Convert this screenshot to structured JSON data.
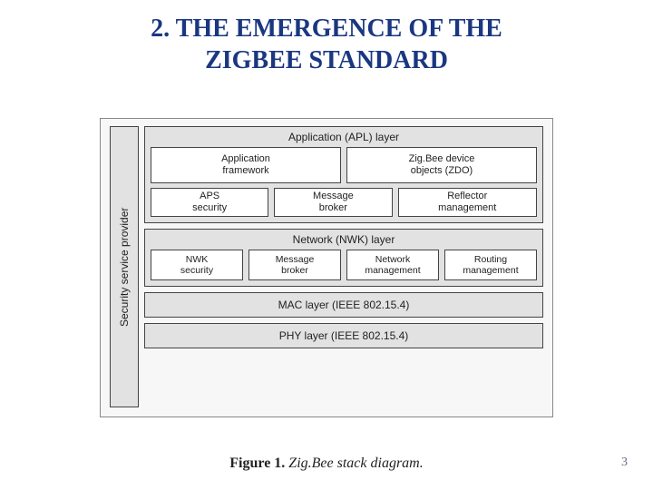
{
  "title_line1": "2. THE EMERGENCE OF THE",
  "title_line2": "ZIGBEE STANDARD",
  "diagram": {
    "ssp_label": "Security service provider",
    "apl": {
      "label": "Application (APL) layer",
      "row1": [
        "Application\nframework",
        "Zig.Bee device\nobjects (ZDO)"
      ],
      "row2": [
        "APS\nsecurity",
        "Message\nbroker",
        "Reflector\nmanagement"
      ]
    },
    "nwk": {
      "label": "Network (NWK) layer",
      "row": [
        "NWK\nsecurity",
        "Message\nbroker",
        "Network\nmanagement",
        "Routing\nmanagement"
      ]
    },
    "mac_label": "MAC layer (IEEE 802.15.4)",
    "phy_label": "PHY layer (IEEE 802.15.4)",
    "colors": {
      "outer_bg": "#f7f7f7",
      "layer_bg": "#e2e2e2",
      "box_bg": "#ffffff",
      "border": "#444444",
      "text": "#222222"
    }
  },
  "caption_bold": "Figure 1. ",
  "caption_ital": "Zig.Bee stack diagram.",
  "page_number": "3"
}
